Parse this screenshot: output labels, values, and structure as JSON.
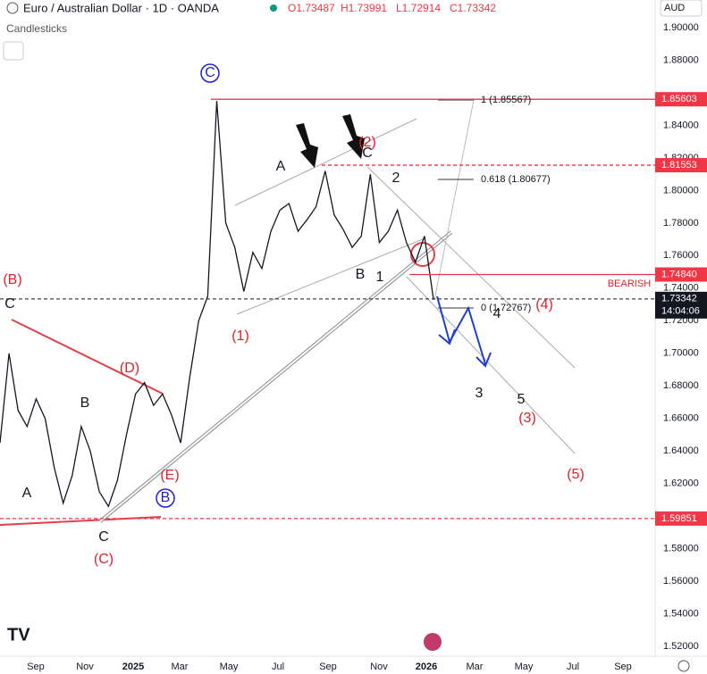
{
  "header": {
    "symbol": "Euro / Australian Dollar · 1D · OANDA",
    "ohlc": [
      "O1.73487",
      "H1.73991",
      "L1.72914",
      "C1.73342"
    ],
    "chart_style": "Candlesticks",
    "currency": "AUD"
  },
  "chart_data": {
    "type": "line",
    "color": "#131722",
    "values": [
      1.645,
      1.7,
      1.665,
      1.655,
      1.672,
      1.66,
      1.63,
      1.608,
      1.625,
      1.655,
      1.64,
      1.615,
      1.606,
      1.622,
      1.65,
      1.675,
      1.682,
      1.668,
      1.675,
      1.662,
      1.645,
      1.685,
      1.72,
      1.735,
      1.855,
      1.78,
      1.765,
      1.738,
      1.762,
      1.752,
      1.775,
      1.788,
      1.792,
      1.775,
      1.782,
      1.79,
      1.812,
      1.785,
      1.776,
      1.765,
      1.772,
      1.81,
      1.768,
      1.775,
      1.788,
      1.768,
      1.756,
      1.772,
      1.733
    ],
    "ylim": [
      1.514,
      1.917
    ],
    "yticks": [
      {
        "value": 1.9,
        "label": "1.90000"
      },
      {
        "value": 1.88,
        "label": "1.88000"
      },
      {
        "value": 1.84,
        "label": "1.84000"
      },
      {
        "value": 1.82,
        "label": "1.82000"
      },
      {
        "value": 1.8,
        "label": "1.80000"
      },
      {
        "value": 1.78,
        "label": "1.78000"
      },
      {
        "value": 1.76,
        "label": "1.76000"
      },
      {
        "value": 1.74,
        "label": "1.74000"
      },
      {
        "value": 1.72,
        "label": "1.72000"
      },
      {
        "value": 1.7,
        "label": "1.70000"
      },
      {
        "value": 1.68,
        "label": "1.68000"
      },
      {
        "value": 1.66,
        "label": "1.66000"
      },
      {
        "value": 1.64,
        "label": "1.64000"
      },
      {
        "value": 1.62,
        "label": "1.62000"
      },
      {
        "value": 1.58,
        "label": "1.58000"
      },
      {
        "value": 1.56,
        "label": "1.56000"
      },
      {
        "value": 1.54,
        "label": "1.54000"
      },
      {
        "value": 1.52,
        "label": "1.52000"
      }
    ],
    "levels": [
      {
        "value": 1.85603,
        "label": "1.85603",
        "color": "#f23645",
        "dashed": false
      },
      {
        "value": 1.81553,
        "label": "1.81553",
        "color": "#f23645",
        "dashed": true
      },
      {
        "value": 1.7484,
        "label": "1.74840",
        "color": "#f23645",
        "dashed": false
      },
      {
        "value": 1.73342,
        "label": "1.73342",
        "countdown": "14:04:06",
        "color": "#131722",
        "dashed": true
      },
      {
        "value": 1.59851,
        "label": "1.59851",
        "color": "#f23645",
        "dashed": true
      }
    ]
  },
  "time_axis": [
    "Sep",
    "Nov",
    "2025",
    "Mar",
    "May",
    "Jul",
    "Sep",
    "Nov",
    "2026",
    "Mar",
    "May",
    "Jul",
    "Sep"
  ],
  "fib_labels": [
    "1 (1.85567)",
    "0.618 (1.80677)",
    "0 (1.72767)"
  ],
  "annotations": [
    {
      "text": "C",
      "color": "#131722"
    },
    {
      "text": "B",
      "color": "#131722"
    },
    {
      "text": "A",
      "color": "#131722"
    },
    {
      "text": "C",
      "color": "#131722"
    },
    {
      "text": "A",
      "color": "#131722"
    },
    {
      "text": "B",
      "color": "#131722"
    },
    {
      "text": "1",
      "color": "#131722"
    },
    {
      "text": "2",
      "color": "#131722"
    },
    {
      "text": "C",
      "color": "#131722"
    },
    {
      "text": "4",
      "color": "#131722"
    },
    {
      "text": "3",
      "color": "#131722"
    },
    {
      "text": "5",
      "color": "#131722"
    },
    {
      "text": "(B)",
      "color": "#e0202a"
    },
    {
      "text": "(D)",
      "color": "#e0202a"
    },
    {
      "text": "(E)",
      "color": "#e0202a"
    },
    {
      "text": "(C)",
      "color": "#e0202a"
    },
    {
      "text": "(1)",
      "color": "#e0202a"
    },
    {
      "text": "(2)",
      "color": "#e0202a"
    },
    {
      "text": "(4)",
      "color": "#e0202a"
    },
    {
      "text": "(3)",
      "color": "#e0202a"
    },
    {
      "text": "(5)",
      "color": "#e0202a"
    },
    {
      "text": "BEARISH",
      "color": "#e0202a",
      "small": true
    },
    {
      "text": "C",
      "color": "#1f1fd0",
      "circled": true
    },
    {
      "text": "B",
      "color": "#1f1fd0",
      "circled": true
    }
  ]
}
